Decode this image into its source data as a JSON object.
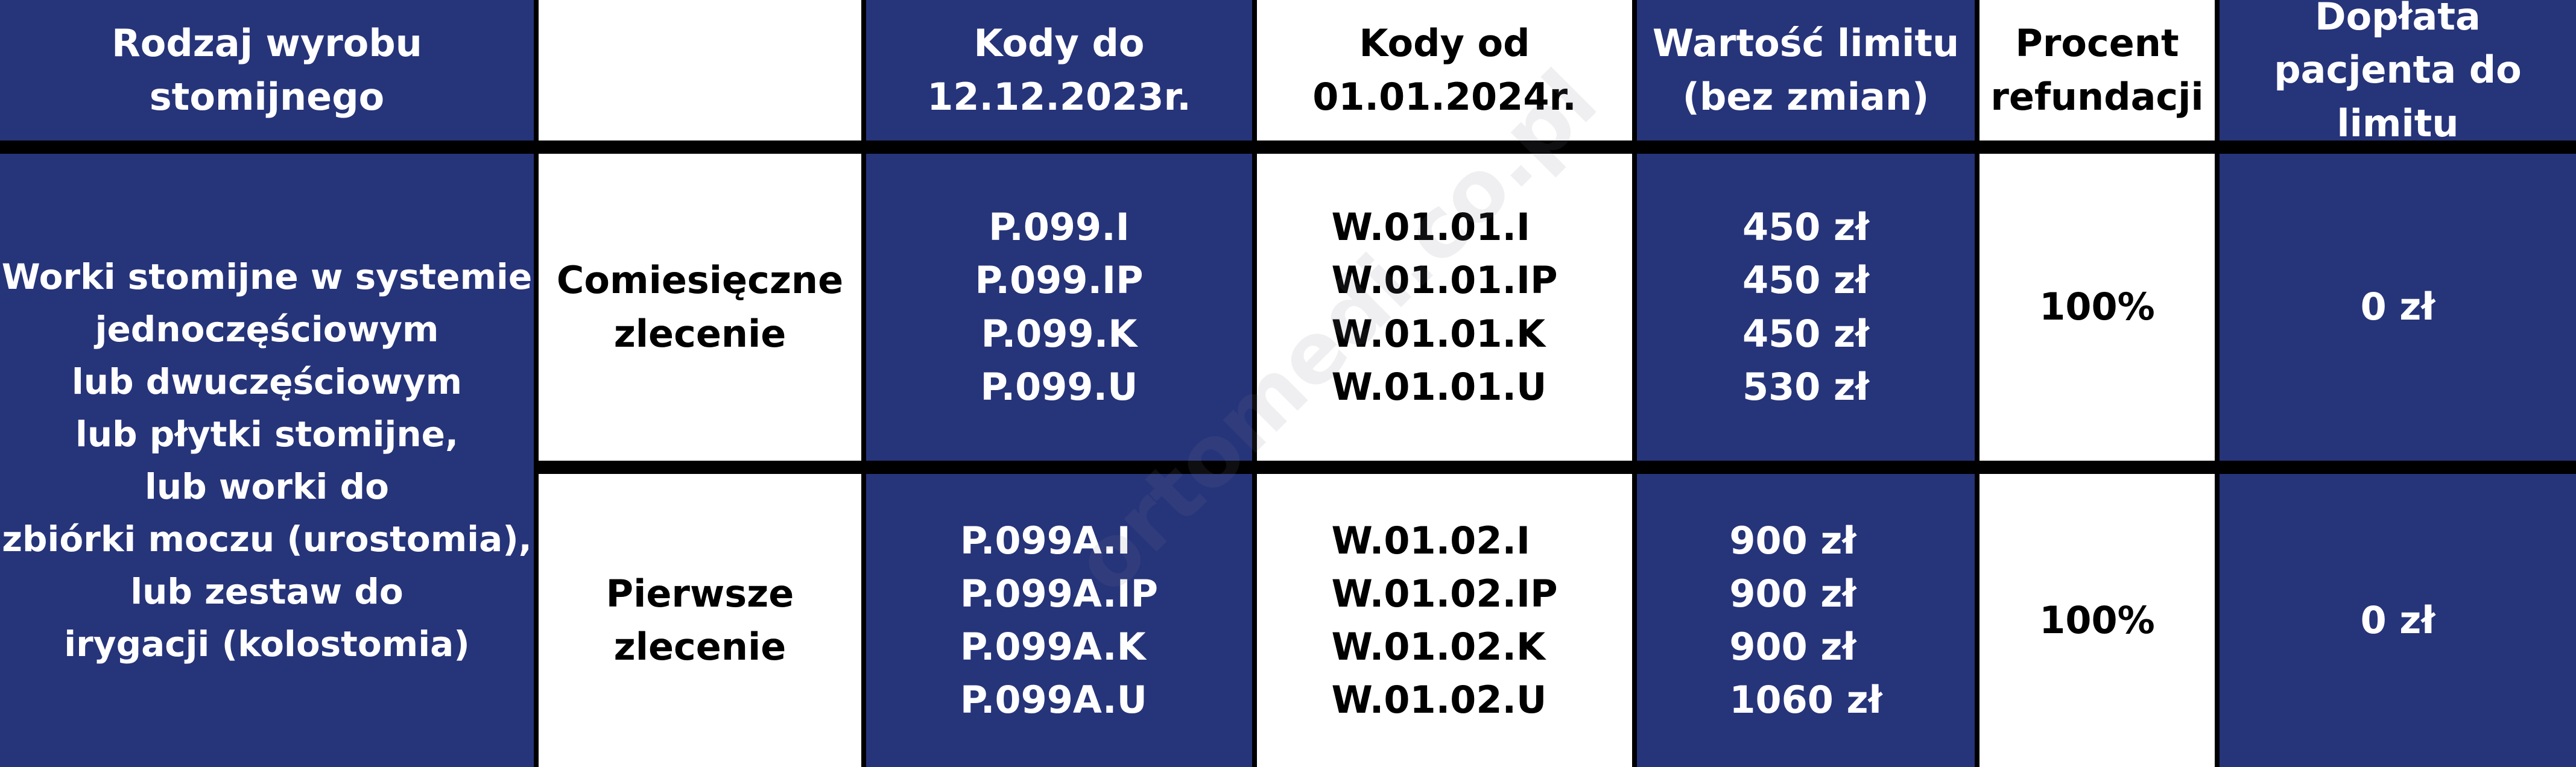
{
  "headers": [
    "Rodzaj wyrobu stomijnego",
    "",
    "Kody do 12.12.2023r.",
    "Kody od 01.01.2024r.",
    "Wartość limitu (bez zmian)",
    "Procent refundacji",
    "Dopłata pacjenta do limitu"
  ],
  "product": [
    "Worki stomijne w systemie",
    "jednoczęściowym",
    "lub dwuczęściowym",
    "lub płytki stomijne,",
    "lub worki do",
    "zbiórki moczu (urostomia),",
    "lub zestaw do",
    "irygacji (kolostomia)"
  ],
  "rows": [
    {
      "order": "Comiesięczne zlecenie",
      "old_codes": [
        "P.099.I",
        "P.099.IP",
        "P.099.K",
        "P.099.U"
      ],
      "new_codes": [
        "W.01.01.I",
        "W.01.01.IP",
        "W.01.01.K",
        "W.01.01.U"
      ],
      "limits": [
        "450 zł",
        "450 zł",
        "450 zł",
        "530 zł"
      ],
      "refund": "100%",
      "copay": "0 zł"
    },
    {
      "order": "Pierwsze zlecenie",
      "old_codes": [
        "P.099A.I",
        "P.099A.IP",
        "P.099A.K",
        "P.099A.U"
      ],
      "new_codes": [
        "W.01.02.I",
        "W.01.02.IP",
        "W.01.02.K",
        "W.01.02.U"
      ],
      "limits": [
        "900 zł",
        "900 zł",
        "900 zł",
        "1060 zł"
      ],
      "refund": "100%",
      "copay": "0 zł"
    }
  ],
  "watermark": "ortomedi.co.pl",
  "colors": {
    "blue": "#26347a",
    "white": "#ffffff",
    "border": "#000000"
  }
}
